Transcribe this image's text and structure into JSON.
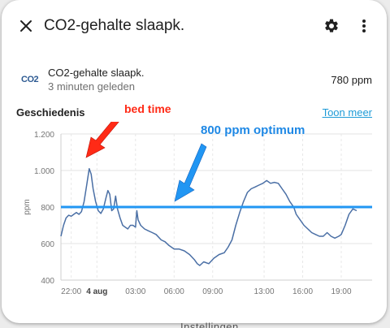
{
  "dialog": {
    "title": "CO2-gehalte slaapk.",
    "close_icon": "close-icon",
    "settings_icon": "gear-icon",
    "menu_icon": "more-vert-icon"
  },
  "entity": {
    "icon_label": "CO2",
    "name": "CO2-gehalte slaapk.",
    "last_changed": "3 minuten geleden",
    "value": "780 ppm"
  },
  "history": {
    "title": "Geschiedenis",
    "show_more": "Toon meer"
  },
  "annotations": {
    "bed_time": "bed time",
    "optimum": "800 ppm optimum",
    "bed_arrow_color": "#ff2a16",
    "optimum_arrow_color": "#2196f3"
  },
  "chart_data": {
    "type": "line",
    "ylabel": "ppm",
    "ylim": [
      400,
      1200
    ],
    "y_ticks": [
      "400",
      "600",
      "800",
      "1.000",
      "1.200"
    ],
    "x_ticks": [
      "22:00",
      "4 aug",
      "03:00",
      "06:00",
      "09:00",
      "13:00",
      "16:00",
      "19:00"
    ],
    "x_range_hours": [
      -0.8,
      23.4
    ],
    "reference_line": {
      "value": 800,
      "color": "#2196f3"
    },
    "series": [
      {
        "color": "#4a6fa5",
        "points": [
          [
            -0.8,
            640
          ],
          [
            -0.6,
            700
          ],
          [
            -0.4,
            740
          ],
          [
            -0.2,
            755
          ],
          [
            0.0,
            750
          ],
          [
            0.2,
            760
          ],
          [
            0.4,
            770
          ],
          [
            0.6,
            760
          ],
          [
            0.8,
            775
          ],
          [
            1.0,
            830
          ],
          [
            1.2,
            920
          ],
          [
            1.4,
            1010
          ],
          [
            1.55,
            980
          ],
          [
            1.7,
            900
          ],
          [
            1.9,
            830
          ],
          [
            2.1,
            780
          ],
          [
            2.3,
            765
          ],
          [
            2.5,
            790
          ],
          [
            2.7,
            850
          ],
          [
            2.85,
            890
          ],
          [
            3.0,
            870
          ],
          [
            3.15,
            780
          ],
          [
            3.3,
            790
          ],
          [
            3.45,
            860
          ],
          [
            3.6,
            790
          ],
          [
            3.8,
            740
          ],
          [
            4.0,
            700
          ],
          [
            4.2,
            690
          ],
          [
            4.4,
            680
          ],
          [
            4.6,
            700
          ],
          [
            4.8,
            700
          ],
          [
            5.0,
            690
          ],
          [
            5.1,
            780
          ],
          [
            5.2,
            730
          ],
          [
            5.4,
            700
          ],
          [
            5.7,
            680
          ],
          [
            6.0,
            670
          ],
          [
            6.3,
            660
          ],
          [
            6.6,
            650
          ],
          [
            7.0,
            620
          ],
          [
            7.3,
            610
          ],
          [
            7.6,
            590
          ],
          [
            8.0,
            570
          ],
          [
            8.4,
            570
          ],
          [
            8.8,
            560
          ],
          [
            9.2,
            540
          ],
          [
            9.6,
            510
          ],
          [
            9.8,
            490
          ],
          [
            10.0,
            480
          ],
          [
            10.3,
            500
          ],
          [
            10.7,
            490
          ],
          [
            11.1,
            520
          ],
          [
            11.5,
            540
          ],
          [
            11.9,
            550
          ],
          [
            12.2,
            580
          ],
          [
            12.5,
            620
          ],
          [
            12.8,
            700
          ],
          [
            13.1,
            770
          ],
          [
            13.4,
            830
          ],
          [
            13.7,
            880
          ],
          [
            14.0,
            900
          ],
          [
            14.3,
            910
          ],
          [
            14.6,
            920
          ],
          [
            14.9,
            930
          ],
          [
            15.2,
            945
          ],
          [
            15.5,
            930
          ],
          [
            15.8,
            935
          ],
          [
            16.1,
            930
          ],
          [
            16.4,
            900
          ],
          [
            16.7,
            870
          ],
          [
            17.0,
            830
          ],
          [
            17.3,
            800
          ],
          [
            17.5,
            760
          ],
          [
            17.8,
            730
          ],
          [
            18.1,
            700
          ],
          [
            18.4,
            680
          ],
          [
            18.7,
            660
          ],
          [
            19.0,
            650
          ],
          [
            19.3,
            640
          ],
          [
            19.6,
            640
          ],
          [
            19.9,
            660
          ],
          [
            20.2,
            640
          ],
          [
            20.5,
            630
          ],
          [
            20.8,
            640
          ],
          [
            21.0,
            650
          ],
          [
            21.3,
            700
          ],
          [
            21.6,
            760
          ],
          [
            21.9,
            790
          ],
          [
            22.2,
            780
          ]
        ]
      }
    ],
    "grid": true
  },
  "bottom_fragment": "Instellingen"
}
